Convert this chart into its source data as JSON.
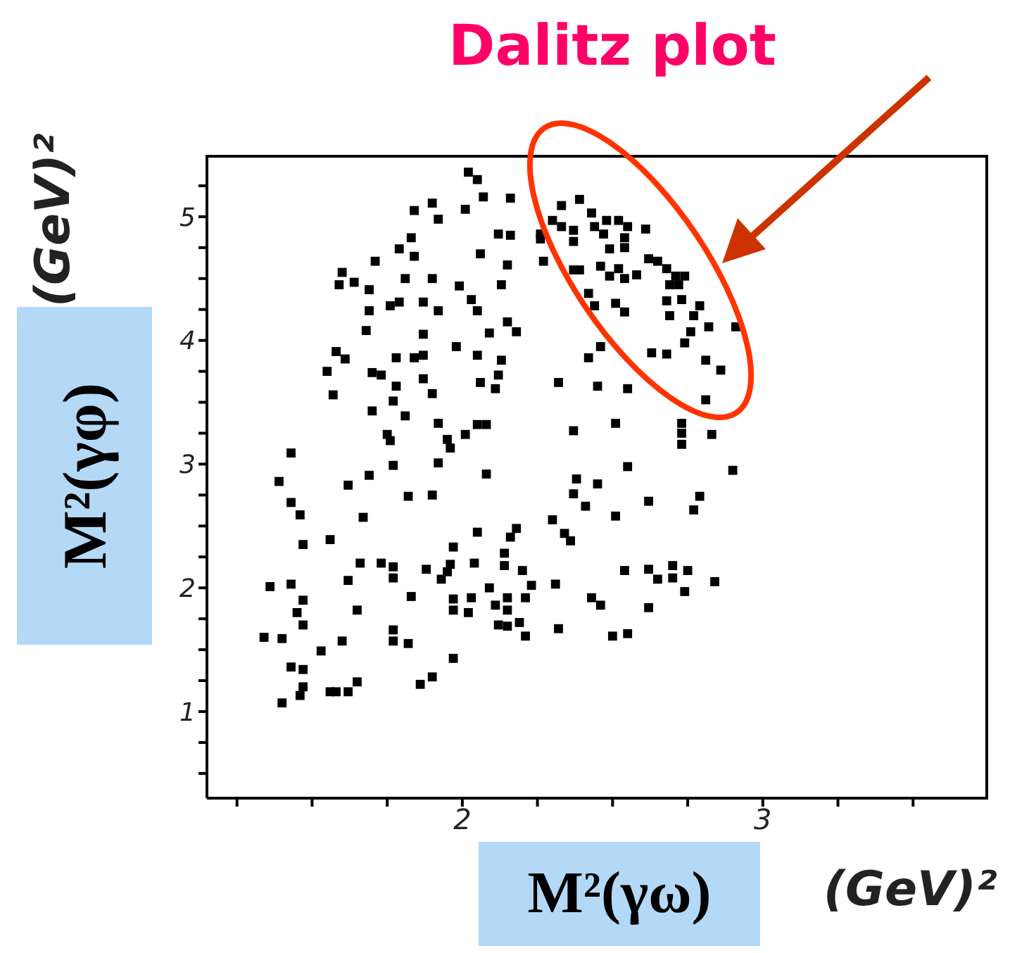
{
  "chart_data": {
    "type": "scatter",
    "title": "Dalitz plot",
    "xlabel": "M²(γω)",
    "ylabel": "M²(γφ)",
    "annotations": [
      "(GeV)²",
      "(GeV)²"
    ],
    "xlim": [
      1.15,
      3.75
    ],
    "ylim": [
      0.3,
      5.5
    ],
    "xticks": [
      {
        "value": 1.25,
        "label": null
      },
      {
        "value": 1.5,
        "label": null
      },
      {
        "value": 1.75,
        "label": null
      },
      2,
      {
        "value": 2.25,
        "label": null
      },
      {
        "value": 2.5,
        "label": null
      },
      {
        "value": 2.75,
        "label": null
      },
      3,
      {
        "value": 3.25,
        "label": null
      },
      {
        "value": 3.5,
        "label": null
      }
    ],
    "yticks": [
      {
        "value": 0.5,
        "label": null
      },
      {
        "value": 0.75,
        "label": null
      },
      1,
      {
        "value": 1.25,
        "label": null
      },
      {
        "value": 1.5,
        "label": null
      },
      {
        "value": 1.75,
        "label": null
      },
      2,
      {
        "value": 2.25,
        "label": null
      },
      {
        "value": 2.5,
        "label": null
      },
      {
        "value": 2.75,
        "label": null
      },
      3,
      {
        "value": 3.25,
        "label": null
      },
      {
        "value": 3.5,
        "label": null
      },
      {
        "value": 3.75,
        "label": null
      },
      4,
      {
        "value": 4.25,
        "label": null
      },
      {
        "value": 4.5,
        "label": null
      },
      {
        "value": 4.75,
        "label": null
      },
      5,
      {
        "value": 5.25,
        "label": null
      }
    ],
    "marker": "square",
    "series": [
      {
        "color": "#000000",
        "x": [
          2.02,
          2.05,
          1.9,
          1.84,
          1.92,
          2.01,
          2.07,
          2.16,
          2.12,
          2.16,
          1.83,
          1.79,
          1.84,
          2.06,
          2.15,
          1.71,
          1.6,
          1.59,
          1.64,
          1.69,
          1.81,
          1.9,
          1.99,
          2.13,
          1.76,
          1.79,
          1.87,
          1.92,
          2.03,
          2.05,
          1.69,
          1.68,
          1.87,
          1.98,
          2.09,
          2.15,
          2.18,
          1.58,
          1.61,
          1.78,
          1.84,
          1.87,
          2.05,
          2.13,
          1.55,
          1.7,
          1.73,
          1.87,
          1.78,
          1.9,
          1.57,
          2.06,
          2.11,
          2.12,
          1.77,
          1.7,
          1.81,
          1.92,
          2.05,
          2.01,
          1.75,
          1.76,
          1.95,
          1.96,
          1.43,
          1.77,
          1.92,
          1.39,
          1.69,
          2.08,
          2.26,
          2.27,
          2.32,
          2.45,
          2.37,
          2.42,
          2.46,
          2.51,
          2.42,
          2.37,
          2.39,
          2.33,
          2.39,
          2.43,
          2.3,
          2.33,
          2.37,
          2.44,
          2.48,
          2.52,
          2.55,
          2.61,
          2.47,
          2.54,
          2.37,
          2.26,
          2.49,
          2.54,
          2.46,
          2.52,
          2.49,
          2.54,
          2.58,
          2.62,
          2.65,
          2.68,
          2.71,
          2.74,
          2.69,
          2.72,
          2.44,
          2.54,
          2.68,
          2.73,
          2.79,
          2.77,
          2.69,
          2.82,
          2.91,
          2.76,
          2.74,
          2.63,
          2.68,
          2.81,
          2.86,
          2.55,
          2.81,
          2.73,
          2.51,
          2.73,
          2.83,
          2.73,
          2.08,
          2.55,
          2.9,
          2.38,
          2.45,
          1.62,
          1.43,
          1.46,
          1.82,
          1.9,
          1.67,
          2.37,
          2.41,
          2.3,
          2.51,
          2.05,
          2.18,
          2.16,
          2.34,
          2.36,
          1.47,
          1.56,
          1.97,
          2.14,
          1.66,
          1.73,
          1.77,
          1.88,
          1.96,
          1.95,
          1.93,
          2.04,
          2.14,
          2.2,
          1.77,
          1.62,
          1.36,
          1.43,
          2.09,
          2.23,
          2.31,
          1.83,
          1.97,
          2.03,
          1.97,
          2.02,
          2.11,
          2.15,
          2.21,
          2.15,
          2.43,
          2.46,
          1.47,
          1.45,
          1.65,
          1.47,
          2.12,
          2.15,
          2.19,
          2.21,
          2.32,
          2.5,
          1.34,
          1.4,
          1.77,
          1.77,
          1.82,
          1.6,
          1.53,
          1.97,
          1.43,
          1.47,
          1.65,
          1.9,
          1.86,
          1.47,
          1.46,
          1.56,
          1.58,
          1.62,
          1.4,
          2.79,
          2.77,
          2.62,
          2.54,
          2.62,
          2.65,
          2.7,
          2.7,
          2.75,
          2.84,
          2.74,
          2.62,
          2.55
        ],
        "values": [
          5.36,
          5.3,
          5.11,
          5.05,
          4.98,
          5.06,
          5.16,
          5.15,
          4.86,
          4.85,
          4.83,
          4.74,
          4.68,
          4.7,
          4.61,
          4.64,
          4.55,
          4.45,
          4.47,
          4.41,
          4.5,
          4.5,
          4.44,
          4.45,
          4.28,
          4.31,
          4.31,
          4.24,
          4.33,
          4.24,
          4.24,
          4.08,
          4.05,
          3.95,
          4.06,
          4.15,
          4.07,
          3.91,
          3.85,
          3.86,
          3.86,
          3.88,
          3.88,
          3.84,
          3.75,
          3.74,
          3.72,
          3.69,
          3.63,
          3.57,
          3.56,
          3.66,
          3.61,
          3.72,
          3.51,
          3.43,
          3.39,
          3.33,
          3.32,
          3.24,
          3.24,
          3.19,
          3.2,
          3.13,
          3.09,
          2.99,
          3.01,
          2.86,
          2.91,
          2.92,
          4.86,
          4.64,
          3.66,
          3.63,
          3.27,
          3.86,
          3.95,
          4.3,
          4.38,
          4.57,
          4.57,
          5.09,
          5.14,
          5.03,
          4.97,
          4.92,
          4.89,
          4.92,
          4.97,
          4.97,
          4.92,
          4.9,
          4.86,
          4.83,
          4.8,
          4.82,
          4.74,
          4.75,
          4.6,
          4.58,
          4.52,
          4.5,
          4.53,
          4.66,
          4.64,
          4.58,
          4.52,
          4.52,
          4.45,
          4.45,
          4.28,
          4.23,
          4.32,
          4.33,
          4.28,
          4.2,
          4.2,
          4.11,
          4.11,
          4.07,
          3.98,
          3.9,
          3.89,
          3.84,
          3.76,
          3.61,
          3.52,
          3.33,
          3.33,
          3.25,
          3.24,
          3.16,
          3.32,
          2.98,
          2.95,
          2.88,
          2.84,
          2.83,
          2.69,
          2.59,
          2.74,
          2.75,
          2.57,
          2.76,
          2.66,
          2.55,
          2.58,
          2.45,
          2.48,
          2.41,
          2.44,
          2.38,
          2.35,
          2.39,
          2.33,
          2.28,
          2.2,
          2.2,
          2.17,
          2.15,
          2.19,
          2.13,
          2.07,
          2.2,
          2.18,
          2.14,
          2.08,
          2.06,
          2.01,
          2.03,
          2.0,
          2.02,
          2.03,
          1.93,
          1.91,
          1.92,
          1.82,
          1.8,
          1.86,
          1.92,
          1.92,
          1.82,
          1.92,
          1.86,
          1.9,
          1.8,
          1.82,
          1.7,
          1.7,
          1.69,
          1.72,
          1.61,
          1.67,
          1.61,
          1.6,
          1.59,
          1.66,
          1.57,
          1.55,
          1.57,
          1.49,
          1.43,
          1.36,
          1.34,
          1.24,
          1.28,
          1.22,
          1.2,
          1.13,
          1.16,
          1.16,
          1.16,
          1.07,
          2.74,
          2.63,
          2.7,
          2.14,
          2.15,
          2.07,
          2.18,
          2.08,
          2.14,
          2.05,
          1.97,
          1.84,
          1.63
        ]
      }
    ]
  }
}
